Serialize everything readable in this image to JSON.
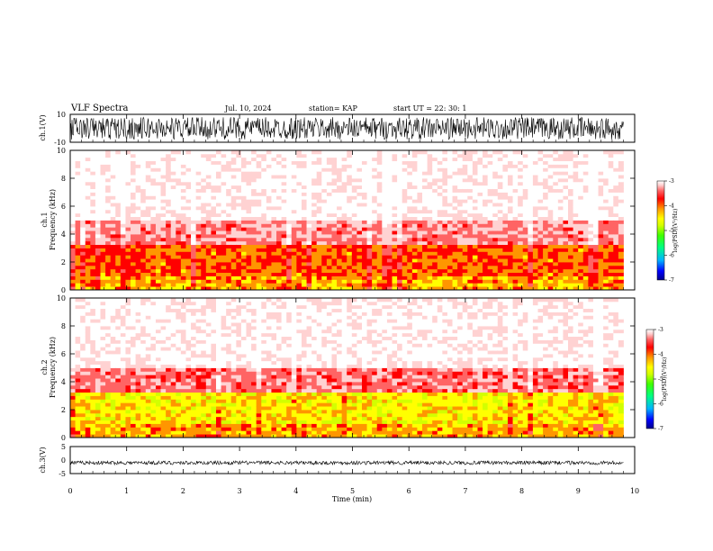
{
  "header": {
    "title": "VLF Spectra",
    "date": "Jul. 10, 2024",
    "station": "station= KAP",
    "start": "start UT =  22: 30: 1"
  },
  "colors": {
    "accent": "#ff0000",
    "colormap": [
      "#00008c",
      "#0000ff",
      "#00b4ff",
      "#00ff80",
      "#40ff00",
      "#d2ff00",
      "#ffff00",
      "#ff9600",
      "#ff0000",
      "#ff6464",
      "#ffd2d2",
      "#ffffff"
    ]
  },
  "chart_data": [
    {
      "type": "line",
      "ylabel": "ch.1(V)",
      "ylim": [
        -10,
        10
      ],
      "yticks": [
        "10",
        "-10"
      ],
      "xlim": [
        0,
        10
      ],
      "description_of_signal": "broadband waveform filling roughly -8 to +8 V across 0 to 9.8 min"
    },
    {
      "type": "heatmap",
      "ylabel_lines": [
        "ch.1",
        "Frequency (kHz)"
      ],
      "ylim": [
        0,
        10
      ],
      "yticks": [
        "0",
        "2",
        "4",
        "6",
        "8",
        "10"
      ],
      "xlim": [
        0,
        10
      ],
      "data_end_min": 9.8,
      "colorbar": {
        "label": "log(PSD)(V²/Hz)",
        "range": [
          -7,
          -3
        ],
        "ticks": [
          "-3",
          "-4",
          "-5",
          "-6",
          "-7"
        ]
      },
      "bands": [
        {
          "fmin": 0,
          "fmax": 1.0,
          "log_psd": -4.5
        },
        {
          "fmin": 1.0,
          "fmax": 3.2,
          "log_psd": -4.3
        },
        {
          "fmin": 3.2,
          "fmax": 5.0,
          "log_psd": -3.6
        },
        {
          "fmin": 5.0,
          "fmax": 10.0,
          "log_psd": -3.1
        }
      ]
    },
    {
      "type": "heatmap",
      "ylabel_lines": [
        "ch.2",
        "Frequency (kHz)"
      ],
      "ylim": [
        0,
        10
      ],
      "yticks": [
        "0",
        "2",
        "4",
        "6",
        "8",
        "10"
      ],
      "xlim": [
        0,
        10
      ],
      "data_end_min": 9.8,
      "colorbar": {
        "label": "log(PSD)(V²/Hz)",
        "range": [
          -7,
          -3
        ],
        "ticks": [
          "-3",
          "-4",
          "-5",
          "-6",
          "-7"
        ]
      },
      "bands": [
        {
          "fmin": 0,
          "fmax": 1.0,
          "log_psd": -4.5
        },
        {
          "fmin": 1.0,
          "fmax": 3.2,
          "log_psd": -4.8
        },
        {
          "fmin": 3.2,
          "fmax": 5.0,
          "log_psd": -3.7
        },
        {
          "fmin": 5.0,
          "fmax": 10.0,
          "log_psd": -3.1
        }
      ]
    },
    {
      "type": "line",
      "ylabel": "ch.3(V)",
      "ylim": [
        -5,
        5
      ],
      "yticks": [
        "5",
        "0",
        "-5"
      ],
      "xlim": [
        0,
        10
      ],
      "xlabel": "Time (min)",
      "xticks": [
        "0",
        "1",
        "2",
        "3",
        "4",
        "5",
        "6",
        "7",
        "8",
        "9",
        "10"
      ],
      "description_of_signal": "narrow band near -1 V across 0 to 9.8 min"
    }
  ]
}
